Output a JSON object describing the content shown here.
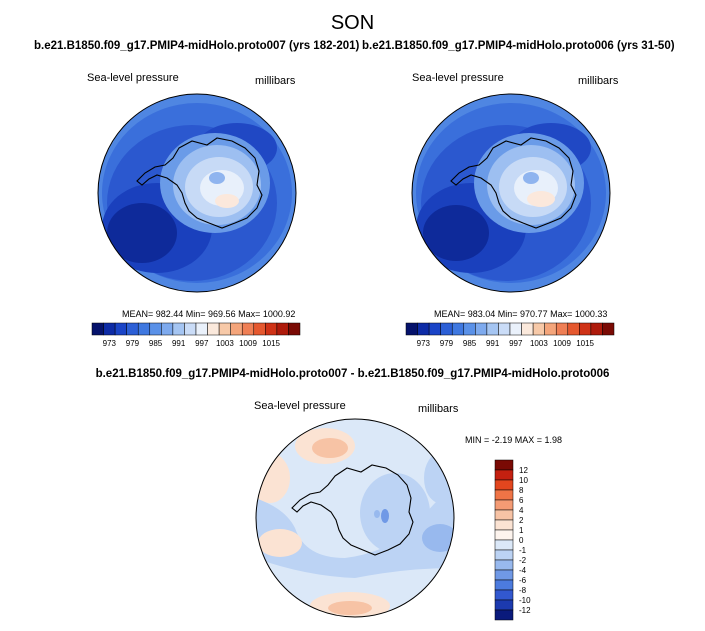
{
  "page": {
    "title": "SON"
  },
  "panel_left": {
    "case": "b.e21.B1850.f09_g17.PMIP4-midHolo.proto007 (yrs 182-201)",
    "var_label": "Sea-level pressure",
    "units": "millibars",
    "stats": "MEAN= 982.44   Min= 969.56   Max= 1000.92"
  },
  "panel_right": {
    "case": "b.e21.B1850.f09_g17.PMIP4-midHolo.proto006 (yrs 31-50)",
    "var_label": "Sea-level pressure",
    "units": "millibars",
    "stats": "MEAN= 983.04   Min= 970.77   Max= 1000.33"
  },
  "panel_diff": {
    "case": "b.e21.B1850.f09_g17.PMIP4-midHolo.proto007 - b.e21.B1850.f09_g17.PMIP4-midHolo.proto006",
    "var_label": "Sea-level pressure",
    "units": "millibars",
    "stats": "MIN =  -2.19 MAX =    1.98"
  },
  "colorbar_abs": {
    "colors": [
      "#05126b",
      "#0d2ba6",
      "#1a44c7",
      "#2c5fd6",
      "#3f78e0",
      "#5a91e8",
      "#7eaaee",
      "#a5c5f2",
      "#cadcf7",
      "#eaf1fb",
      "#fbe9dc",
      "#f7c9a8",
      "#f4a57b",
      "#ef7f55",
      "#e5582f",
      "#cf3216",
      "#ae1a0b",
      "#7a0a04"
    ],
    "labels": [
      "973",
      "979",
      "985",
      "991",
      "997",
      "1003",
      "1009",
      "1015"
    ]
  },
  "colorbar_diff": {
    "colors": [
      "#7a0a04",
      "#c42010",
      "#e2461e",
      "#ef7446",
      "#f49b74",
      "#f7c3a5",
      "#fbe3d3",
      "#fdf4ee",
      "#dbe8f8",
      "#bcd3f4",
      "#98b9ee",
      "#7099e6",
      "#4c7bde",
      "#3258cf",
      "#1c3aaf",
      "#0a1a7c"
    ],
    "labels": [
      "12",
      "10",
      "8",
      "6",
      "4",
      "2",
      "1",
      "0",
      "-1",
      "-2",
      "-4",
      "-6",
      "-8",
      "-10",
      "-12"
    ]
  }
}
